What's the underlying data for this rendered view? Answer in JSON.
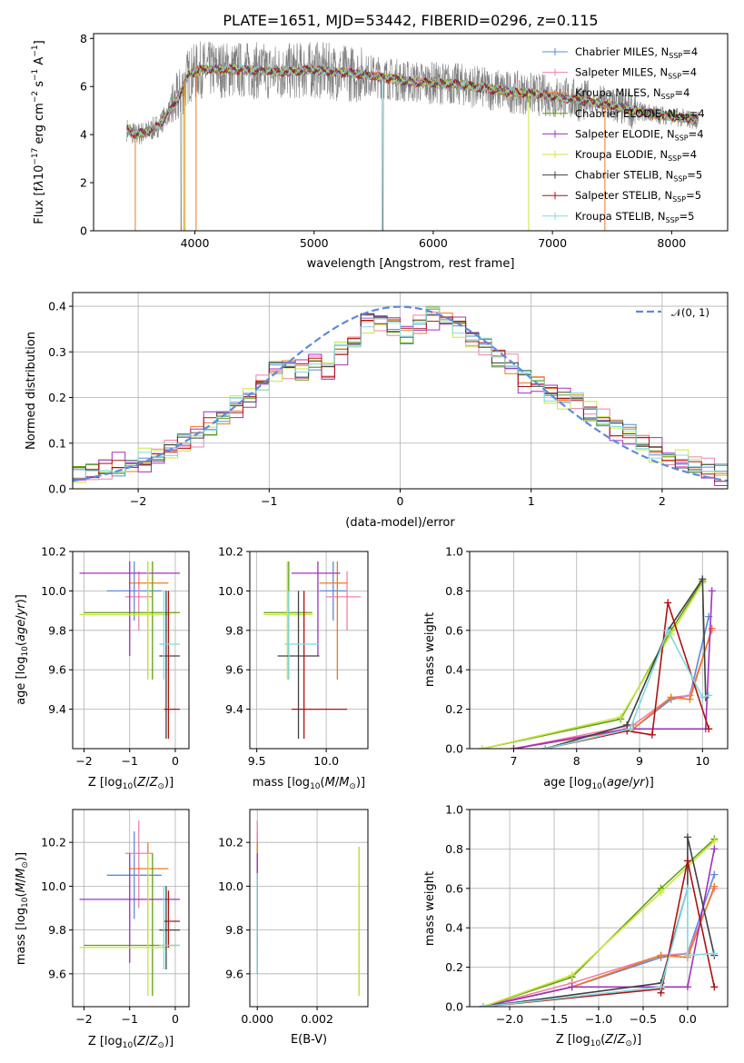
{
  "colors": {
    "Chabrier MILES": "#5b8bdb",
    "Salpeter MILES": "#f080a8",
    "Kroupa MILES": "#f07820",
    "Chabrier ELODIE": "#60a010",
    "Salpeter ELODIE": "#a030c0",
    "Kroupa ELODIE": "#c8e640",
    "Chabrier STELIB": "#404040",
    "Salpeter STELIB": "#b01010",
    "Kroupa STELIB": "#80d8e0",
    "data": "#808080",
    "normal": "#5b8bdb",
    "grid": "#b0b0b0"
  },
  "chart_data": [
    {
      "id": "spectrum",
      "type": "line",
      "title": "PLATE=1651, MJD=53442, FIBERID=0296, z=0.115",
      "xlabel": "wavelength [Angstrom, rest frame]",
      "ylabel_html": "Flux [f<tspan font-style=\"italic\">λ</tspan>10<tspan font-size=\"9\" dy=\"-6\">−17</tspan><tspan dy=\"6\"> erg cm</tspan><tspan font-size=\"9\" dy=\"-6\">−2</tspan><tspan dy=\"6\"> s</tspan><tspan font-size=\"9\" dy=\"-6\">−1</tspan><tspan dy=\"6\"> A</tspan><tspan font-size=\"9\" dy=\"-6\">−1</tspan><tspan dy=\"6\">]</tspan>",
      "xlim": [
        3150,
        8470
      ],
      "ylim": [
        0,
        8.2
      ],
      "xticks": [
        4000,
        5000,
        6000,
        7000,
        8000
      ],
      "yticks": [
        0,
        2,
        4,
        6,
        8
      ],
      "grid": false,
      "continuum": {
        "x": [
          3430,
          3500,
          3600,
          3700,
          3850,
          3950,
          4050,
          4200,
          4400,
          4700,
          5000,
          5400,
          5800,
          6200,
          6600,
          7000,
          7400,
          7800,
          8220
        ],
        "y": [
          4.2,
          4.0,
          4.1,
          4.4,
          5.4,
          6.5,
          6.7,
          6.7,
          6.7,
          6.6,
          6.7,
          6.5,
          6.2,
          6.1,
          5.8,
          5.6,
          5.3,
          4.9,
          4.6
        ]
      },
      "model_wave_range": [
        3430,
        8220
      ],
      "data_wave_range": [
        3430,
        8230
      ],
      "legend": [
        "Chabrier MILES, N<tspan font-size=\"8\" dy=\"3\">SSP</tspan><tspan dy=\"-3\">=4</tspan>",
        "Salpeter MILES, N<tspan font-size=\"8\" dy=\"3\">SSP</tspan><tspan dy=\"-3\">=4</tspan>",
        "Kroupa MILES, N<tspan font-size=\"8\" dy=\"3\">SSP</tspan><tspan dy=\"-3\">=4</tspan>",
        "Chabrier ELODIE, N<tspan font-size=\"8\" dy=\"3\">SSP</tspan><tspan dy=\"-3\">=4</tspan>",
        "Salpeter ELODIE, N<tspan font-size=\"8\" dy=\"3\">SSP</tspan><tspan dy=\"-3\">=4</tspan>",
        "Kroupa ELODIE, N<tspan font-size=\"8\" dy=\"3\">SSP</tspan><tspan dy=\"-3\">=4</tspan>",
        "Chabrier STELIB, N<tspan font-size=\"8\" dy=\"3\">SSP</tspan><tspan dy=\"-3\">=5</tspan>",
        "Salpeter STELIB, N<tspan font-size=\"8\" dy=\"3\">SSP</tspan><tspan dy=\"-3\">=5</tspan>",
        "Kroupa STELIB, N<tspan font-size=\"8\" dy=\"3\">SSP</tspan><tspan dy=\"-3\">=5</tspan>"
      ],
      "legend_location": "right"
    },
    {
      "id": "residuals",
      "type": "histogram",
      "xlabel": "(data-model)/error",
      "ylabel": "Normed distribution",
      "xlim": [
        -2.5,
        2.5
      ],
      "ylim": [
        0,
        0.43
      ],
      "xticks": [
        -2,
        -1,
        0,
        1,
        2
      ],
      "yticks": [
        0.0,
        0.1,
        0.2,
        0.3,
        0.4
      ],
      "grid": true,
      "bin_edges": [
        -2.5,
        -2.4,
        -2.3,
        -2.2,
        -2.1,
        -2.0,
        -1.9,
        -1.8,
        -1.7,
        -1.6,
        -1.5,
        -1.4,
        -1.3,
        -1.2,
        -1.1,
        -1.0,
        -0.9,
        -0.8,
        -0.7,
        -0.6,
        -0.5,
        -0.4,
        -0.3,
        -0.2,
        -0.1,
        0.0,
        0.1,
        0.2,
        0.3,
        0.4,
        0.5,
        0.6,
        0.7,
        0.8,
        0.9,
        1.0,
        1.1,
        1.2,
        1.3,
        1.4,
        1.5,
        1.6,
        1.7,
        1.8,
        1.9,
        2.0,
        2.1,
        2.2,
        2.3,
        2.4,
        2.5
      ],
      "base_values": [
        0.03,
        0.035,
        0.045,
        0.05,
        0.055,
        0.06,
        0.07,
        0.085,
        0.1,
        0.12,
        0.14,
        0.16,
        0.18,
        0.2,
        0.23,
        0.26,
        0.27,
        0.26,
        0.28,
        0.26,
        0.3,
        0.32,
        0.37,
        0.37,
        0.36,
        0.34,
        0.36,
        0.38,
        0.37,
        0.36,
        0.33,
        0.32,
        0.29,
        0.27,
        0.24,
        0.23,
        0.21,
        0.2,
        0.2,
        0.17,
        0.15,
        0.13,
        0.12,
        0.1,
        0.085,
        0.07,
        0.06,
        0.05,
        0.04,
        0.03
      ],
      "series": [
        {
          "name": "Chabrier MILES",
          "offset": 0.012
        },
        {
          "name": "Salpeter MILES",
          "offset": 0.018
        },
        {
          "name": "Kroupa MILES",
          "offset": -0.008
        },
        {
          "name": "Chabrier ELODIE",
          "offset": -0.012
        },
        {
          "name": "Salpeter ELODIE",
          "offset": 0.02
        },
        {
          "name": "Kroupa ELODIE",
          "offset": -0.018
        },
        {
          "name": "Chabrier STELIB",
          "offset": 0.005
        },
        {
          "name": "Salpeter STELIB",
          "offset": -0.004
        },
        {
          "name": "Kroupa STELIB",
          "offset": 0.008
        }
      ],
      "reference_curve": {
        "label": "𝒩(0, 1)",
        "mean": 0,
        "sigma": 1
      },
      "legend_location": "top-right"
    }
  ],
  "fit_results": {
    "series": [
      "Chabrier MILES",
      "Salpeter MILES",
      "Kroupa MILES",
      "Chabrier ELODIE",
      "Salpeter ELODIE",
      "Kroupa ELODIE",
      "Chabrier STELIB",
      "Salpeter STELIB",
      "Kroupa STELIB"
    ],
    "Z": [
      -0.9,
      -0.8,
      -0.6,
      -0.5,
      -1.0,
      -0.6,
      -0.2,
      -0.15,
      -0.25
    ],
    "Z_err": [
      [
        -1.5,
        -0.3
      ],
      [
        -1.1,
        -0.5
      ],
      [
        -1.0,
        -0.15
      ],
      [
        -2.0,
        0.1
      ],
      [
        -2.1,
        0.1
      ],
      [
        -2.1,
        -0.1
      ],
      [
        -0.35,
        0.1
      ],
      [
        -0.25,
        0.1
      ],
      [
        -0.35,
        0.1
      ]
    ],
    "age": [
      10.0,
      9.97,
      10.04,
      9.89,
      10.09,
      9.88,
      9.67,
      9.4,
      9.73
    ],
    "age_err": [
      [
        9.85,
        10.15
      ],
      [
        9.8,
        10.1
      ],
      [
        9.55,
        10.15
      ],
      [
        9.55,
        10.15
      ],
      [
        9.67,
        10.15
      ],
      [
        9.55,
        10.15
      ],
      [
        9.25,
        10.0
      ],
      [
        9.25,
        10.0
      ],
      [
        9.55,
        10.0
      ]
    ],
    "mass": [
      10.05,
      10.15,
      10.08,
      9.73,
      9.94,
      9.72,
      9.8,
      9.84,
      9.73
    ],
    "mass_err": [
      [
        9.85,
        10.25
      ],
      [
        9.9,
        10.3
      ],
      [
        9.75,
        10.2
      ],
      [
        9.5,
        10.15
      ],
      [
        9.65,
        10.15
      ],
      [
        9.5,
        10.15
      ],
      [
        9.62,
        10.0
      ],
      [
        9.72,
        9.98
      ],
      [
        9.62,
        10.0
      ]
    ],
    "mass_x_err": [
      [
        9.95,
        10.15
      ],
      [
        10.0,
        10.25
      ],
      [
        9.95,
        10.15
      ],
      [
        9.55,
        9.9
      ],
      [
        9.75,
        10.1
      ],
      [
        9.55,
        9.9
      ],
      [
        9.65,
        9.95
      ],
      [
        9.75,
        10.15
      ],
      [
        9.7,
        9.95
      ]
    ],
    "ebv": [
      0.0,
      0.0,
      0.0,
      0.0034,
      0.0,
      0.0034,
      0.0,
      0.0,
      0.0
    ],
    "ebv_mass_err": [
      [
        9.6,
        10.25
      ],
      [
        9.6,
        10.3
      ],
      [
        9.6,
        10.2
      ],
      [
        9.5,
        10.18
      ],
      [
        9.65,
        10.15
      ],
      [
        9.5,
        10.18
      ],
      [
        9.6,
        10.06
      ],
      [
        9.7,
        10.06
      ],
      [
        9.6,
        10.06
      ]
    ]
  },
  "scatter_labels": {
    "age_ylabel_html": "age  [log<tspan font-size=\"9\" dy=\"3\">10</tspan><tspan dy=\"-3\">(</tspan><tspan font-style=\"italic\">age</tspan>/<tspan font-style=\"italic\">yr</tspan>)]",
    "Z_xlabel_html": "Z [log<tspan font-size=\"9\" dy=\"3\">10</tspan><tspan dy=\"-3\">(</tspan><tspan font-style=\"italic\">Z</tspan>/<tspan font-style=\"italic\">Z</tspan><tspan font-size=\"9\" dy=\"3\">⊙</tspan><tspan dy=\"-3\">)]</tspan>",
    "mass_xlabel_html": "mass [log<tspan font-size=\"9\" dy=\"3\">10</tspan><tspan dy=\"-3\">(</tspan><tspan font-style=\"italic\">M</tspan>/<tspan font-style=\"italic\">M</tspan><tspan font-size=\"9\" dy=\"3\">⊙</tspan><tspan dy=\"-3\">)]</tspan>",
    "mass_ylabel_html": "mass [log<tspan font-size=\"9\" dy=\"3\">10</tspan><tspan dy=\"-3\">(</tspan><tspan font-style=\"italic\">M</tspan>/<tspan font-style=\"italic\">M</tspan><tspan font-size=\"9\" dy=\"3\">⊙</tspan><tspan dy=\"-3\">)]</tspan>",
    "ebv_xlabel": "E(B-V)",
    "mass_weight_ylabel": "mass weight",
    "age_xlabel_html": "age  [log<tspan font-size=\"9\" dy=\"3\">10</tspan><tspan dy=\"-3\">(</tspan><tspan font-style=\"italic\">age</tspan>/<tspan font-style=\"italic\">yr</tspan>)]"
  },
  "panels": {
    "age_vs_Z": {
      "xlim": [
        -2.25,
        0.3
      ],
      "ylim": [
        9.2,
        10.2
      ],
      "xticks": [
        -2,
        -1,
        0
      ],
      "yticks": [
        9.4,
        9.6,
        9.8,
        10.0,
        10.2
      ]
    },
    "age_vs_mass": {
      "xlim": [
        9.45,
        10.3
      ],
      "ylim": [
        9.2,
        10.2
      ],
      "xticks": [
        9.5,
        10.0
      ],
      "yticks": [
        9.4,
        9.6,
        9.8,
        10.0,
        10.2
      ]
    },
    "mass_vs_Z": {
      "xlim": [
        -2.25,
        0.3
      ],
      "ylim": [
        9.45,
        10.35
      ],
      "xticks": [
        -2,
        -1,
        0
      ],
      "yticks": [
        9.6,
        9.8,
        10.0,
        10.2
      ]
    },
    "mass_vs_ebv": {
      "xlim": [
        -0.00025,
        0.0037
      ],
      "ylim": [
        9.45,
        10.35
      ],
      "xticks": [
        0.0,
        0.002
      ],
      "xtick_labels": [
        "0.000",
        "0.002"
      ],
      "yticks": [
        9.6,
        9.8,
        10.0,
        10.2
      ]
    },
    "weight_vs_age": {
      "xlim": [
        6.3,
        10.4
      ],
      "ylim": [
        0,
        1.0
      ],
      "xticks": [
        7,
        8,
        9,
        10
      ],
      "yticks": [
        0.0,
        0.2,
        0.4,
        0.6,
        0.8,
        1.0
      ]
    },
    "weight_vs_Z": {
      "xlim": [
        -2.45,
        0.45
      ],
      "ylim": [
        0,
        1.0
      ],
      "xticks": [
        -2.0,
        -1.5,
        -1.0,
        -0.5,
        0.0
      ],
      "xtick_labels": [
        "−2.0",
        "−1.5",
        "−1.0",
        "−0.5",
        "0.0"
      ],
      "yticks": [
        0.0,
        0.2,
        0.4,
        0.6,
        0.8,
        1.0
      ]
    }
  },
  "ssp_weights": {
    "Chabrier MILES": {
      "age": [
        7.0,
        8.9,
        9.5,
        9.8,
        10.1
      ],
      "Z": [
        -2.3,
        -1.3,
        -0.3,
        0.0,
        0.3
      ],
      "w": [
        0.0,
        0.1,
        0.25,
        0.27,
        0.67
      ]
    },
    "Salpeter MILES": {
      "age": [
        7.0,
        8.9,
        9.5,
        9.8,
        10.15
      ],
      "Z": [
        -2.3,
        -1.3,
        -0.3,
        0.0,
        0.3
      ],
      "w": [
        0.0,
        0.12,
        0.26,
        0.27,
        0.6
      ]
    },
    "Kroupa MILES": {
      "age": [
        7.0,
        8.9,
        9.5,
        9.8,
        10.15
      ],
      "Z": [
        -2.3,
        -1.3,
        -0.3,
        0.0,
        0.3
      ],
      "w": [
        0.0,
        0.1,
        0.26,
        0.25,
        0.61
      ]
    },
    "Chabrier ELODIE": {
      "age": [
        6.5,
        8.7,
        9.5,
        10.0
      ],
      "Z": [
        -2.3,
        -1.3,
        -0.3,
        0.3
      ],
      "w": [
        0.0,
        0.15,
        0.6,
        0.85
      ]
    },
    "Salpeter ELODIE": {
      "age": [
        7.0,
        8.8,
        10.05,
        10.15
      ],
      "Z": [
        -2.3,
        -1.3,
        0.0,
        0.3
      ],
      "w": [
        0.0,
        0.1,
        0.1,
        0.8
      ]
    },
    "Kroupa ELODIE": {
      "age": [
        6.5,
        8.7,
        9.5,
        10.0
      ],
      "Z": [
        -2.3,
        -1.3,
        -0.3,
        0.3
      ],
      "w": [
        0.0,
        0.16,
        0.58,
        0.84
      ]
    },
    "Chabrier STELIB": {
      "age": [
        7.5,
        8.8,
        9.45,
        10.0,
        10.05
      ],
      "Z": [
        -2.3,
        -0.3,
        0.0,
        0.0,
        0.3
      ],
      "w": [
        0.0,
        0.12,
        0.6,
        0.86,
        0.26
      ]
    },
    "Salpeter STELIB": {
      "age": [
        7.5,
        8.8,
        9.2,
        9.45,
        10.1
      ],
      "Z": [
        -2.3,
        -0.3,
        -0.3,
        0.0,
        0.3
      ],
      "w": [
        0.0,
        0.09,
        0.07,
        0.74,
        0.1
      ]
    },
    "Kroupa STELIB": {
      "age": [
        7.5,
        8.85,
        9.45,
        10.0,
        10.1
      ],
      "Z": [
        -2.3,
        -0.3,
        0.0,
        0.0,
        0.3
      ],
      "w": [
        0.0,
        0.1,
        0.6,
        0.26,
        0.27
      ]
    }
  }
}
